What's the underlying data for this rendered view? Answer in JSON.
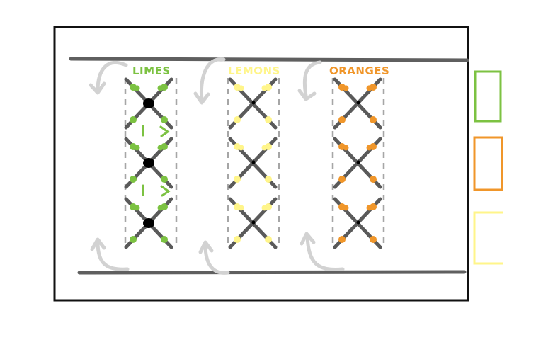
{
  "labels": {
    "limes": "LIMES",
    "lemons": "LEMONS",
    "oranges": "ORANGES"
  },
  "colors": {
    "limes": "#7cc242",
    "lemons": "#fff58a",
    "oranges": "#f0962a",
    "frame": "#111111",
    "rail": "#5f5f5f",
    "arrow": "#d2d2d2",
    "tie": "#5a5a5a",
    "divider": "#a6a6a6"
  },
  "columns": [
    {
      "name": "limes",
      "units_per_column": 3
    },
    {
      "name": "lemons",
      "units_per_column": 3
    },
    {
      "name": "oranges",
      "units_per_column": 3
    }
  ],
  "legend": [
    "limes",
    "oranges",
    "lemons"
  ]
}
